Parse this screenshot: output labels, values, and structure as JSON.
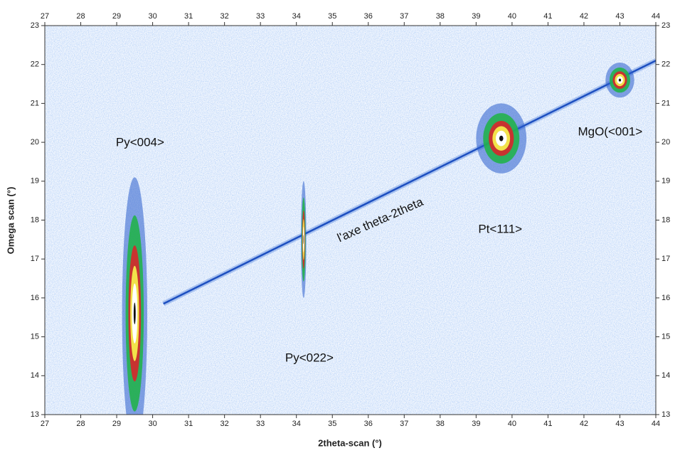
{
  "chart_data": {
    "type": "heatmap",
    "xlabel": "2theta-scan (°)",
    "ylabel": "Omega scan (°)",
    "xlim": [
      27,
      44
    ],
    "ylim": [
      13,
      23
    ],
    "xticks": [
      27,
      28,
      29,
      30,
      31,
      32,
      33,
      34,
      35,
      36,
      37,
      38,
      39,
      40,
      41,
      42,
      43,
      44
    ],
    "yticks": [
      13,
      14,
      15,
      16,
      17,
      18,
      19,
      20,
      21,
      22,
      23
    ],
    "peaks": [
      {
        "x": 29.5,
        "y": 15.6,
        "x_width": 0.7,
        "y_width": 7
      },
      {
        "x": 34.2,
        "y": 17.5,
        "x_width": 0.15,
        "y_width": 3
      },
      {
        "x": 39.7,
        "y": 20.1,
        "x_width": 1.4,
        "y_width": 1.8
      },
      {
        "x": 43.0,
        "y": 21.6,
        "x_width": 0.8,
        "y_width": 0.9
      }
    ],
    "line": {
      "x": [
        30.3,
        44
      ],
      "y": [
        15.85,
        22.1
      ]
    },
    "annotations": [
      {
        "text": "Py<004>",
        "x": 29.65,
        "y": 19.98
      },
      {
        "text": "Py<022>",
        "x": 34.36,
        "y": 14.44
      },
      {
        "text": "l'axe theta-2theta",
        "x": 36.34,
        "y": 17.99
      },
      {
        "text": "Pt<111>",
        "x": 39.67,
        "y": 17.75
      },
      {
        "text": "MgO(<001>",
        "x": 42.73,
        "y": 20.26
      }
    ]
  }
}
